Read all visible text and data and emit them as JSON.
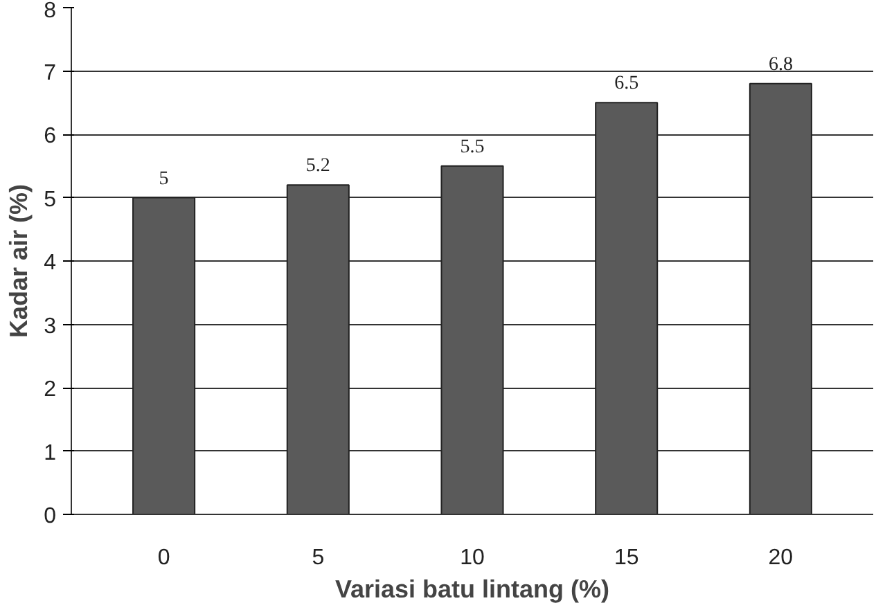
{
  "chart_data": {
    "type": "bar",
    "xlabel": "Variasi batu lintang (%)",
    "ylabel": "Kadar air (%)",
    "categories": [
      "0",
      "5",
      "10",
      "15",
      "20"
    ],
    "values": [
      5,
      5.2,
      5.5,
      6.5,
      6.8
    ],
    "color": "#5a5a5a",
    "ylim": [
      0,
      8
    ],
    "yticks": [
      0,
      1,
      2,
      3,
      4,
      5,
      6,
      7,
      8
    ],
    "grid": "y",
    "data_labels": true
  }
}
